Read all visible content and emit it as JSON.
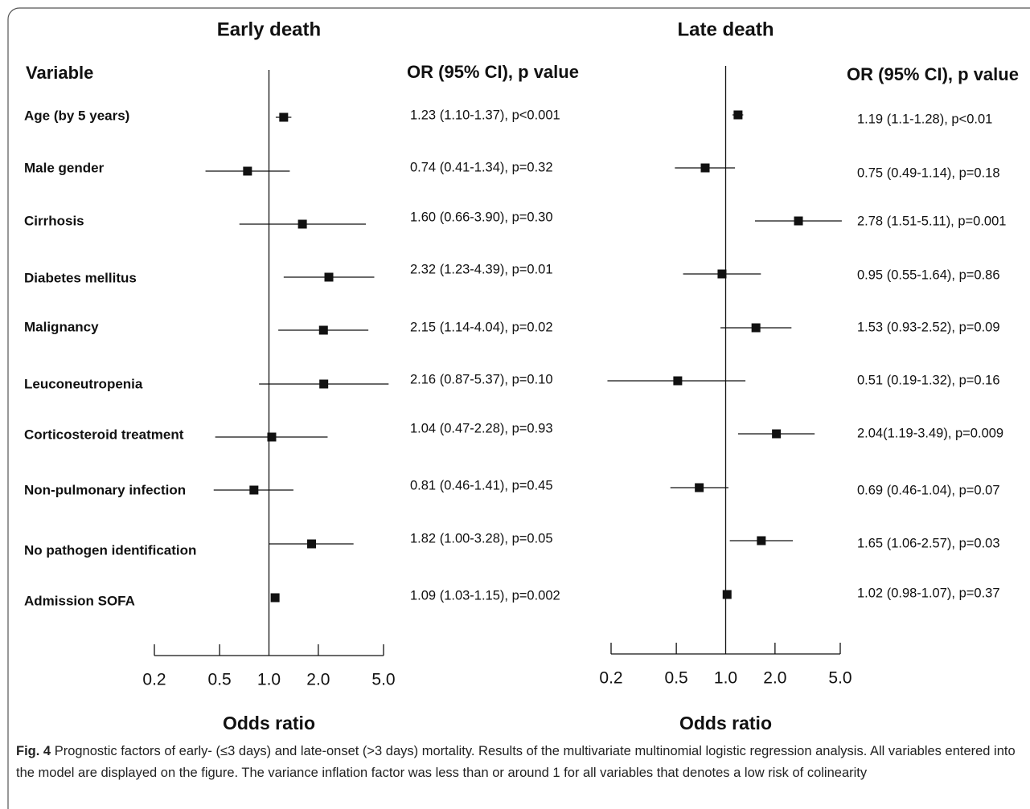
{
  "chart_data": [
    {
      "type": "forest",
      "title": "Early death",
      "column_label": "Variable",
      "value_header": "OR (95% CI), p value",
      "xlabel": "Odds ratio",
      "categories": [
        "Age (by 5 years)",
        "Male gender",
        "Cirrhosis",
        "Diabetes mellitus",
        "Malignancy",
        "Leuconeutropenia",
        "Corticosteroid treatment",
        "Non-pulmonary infection",
        "No pathogen  identification",
        "Admission SOFA"
      ],
      "values": [
        1.23,
        0.74,
        1.6,
        2.32,
        2.15,
        2.16,
        1.04,
        0.81,
        1.82,
        1.09
      ],
      "lower": [
        1.1,
        0.41,
        0.66,
        1.23,
        1.14,
        0.87,
        0.47,
        0.46,
        1.0,
        1.03
      ],
      "upper": [
        1.37,
        1.34,
        3.9,
        4.39,
        4.04,
        5.37,
        2.28,
        1.41,
        3.28,
        1.15
      ],
      "value_labels": [
        "1.23 (1.10-1.37), p<0.001",
        "0.74 (0.41-1.34), p=0.32",
        "1.60 (0.66-3.90), p=0.30",
        "2.32 (1.23-4.39), p=0.01",
        "2.15 (1.14-4.04), p=0.02",
        "2.16 (0.87-5.37), p=0.10",
        "1.04 (0.47-2.28), p=0.93",
        "0.81 (0.46-1.41), p=0.45",
        "1.82 (1.00-3.28), p=0.05",
        "1.09 (1.03-1.15), p=0.002"
      ],
      "xlim": [
        0.2,
        5
      ],
      "xticks": [
        0.2,
        0.5,
        {
          "value": 1,
          "label": "1.0"
        },
        {
          "value": 2,
          "label": "2.0"
        },
        {
          "value": 5,
          "label": "5.0"
        }
      ],
      "log_x": true,
      "reference_line": 1,
      "color": "#111111"
    },
    {
      "type": "forest",
      "title": "Late death",
      "value_header": "OR (95% CI), p value",
      "xlabel": "Odds ratio",
      "values": [
        1.19,
        0.75,
        2.78,
        0.95,
        1.53,
        0.51,
        2.04,
        0.69,
        1.65,
        1.02
      ],
      "lower": [
        1.1,
        0.49,
        1.51,
        0.55,
        0.93,
        0.19,
        1.19,
        0.46,
        1.06,
        0.98
      ],
      "upper": [
        1.28,
        1.14,
        5.11,
        1.64,
        2.52,
        1.32,
        3.49,
        1.04,
        2.57,
        1.07
      ],
      "value_labels": [
        "1.19 (1.1-1.28), p<0.01",
        "0.75 (0.49-1.14), p=0.18",
        "2.78 (1.51-5.11), p=0.001",
        "0.95 (0.55-1.64), p=0.86",
        "1.53 (0.93-2.52), p=0.09",
        "0.51 (0.19-1.32), p=0.16",
        "2.04(1.19-3.49), p=0.009",
        "0.69 (0.46-1.04), p=0.07",
        "1.65 (1.06-2.57), p=0.03",
        "1.02 (0.98-1.07), p=0.37"
      ],
      "xlim": [
        0.2,
        5
      ],
      "xticks": [
        0.2,
        0.5,
        {
          "value": 1,
          "label": "1.0"
        },
        {
          "value": 2,
          "label": "2.0"
        },
        {
          "value": 5,
          "label": "5.0"
        }
      ],
      "log_x": true,
      "reference_line": 1,
      "color": "#111111"
    }
  ],
  "caption": {
    "label": "Fig. 4",
    "text": "Prognostic factors of early- (≤3 days) and late-onset (>3 days) mortality. Results of the multivariate multinomial logistic regression analysis. All variables entered into the model are displayed on the figure. The variance inflation factor was less than or around 1 for all variables that denotes a low risk of colinearity"
  }
}
